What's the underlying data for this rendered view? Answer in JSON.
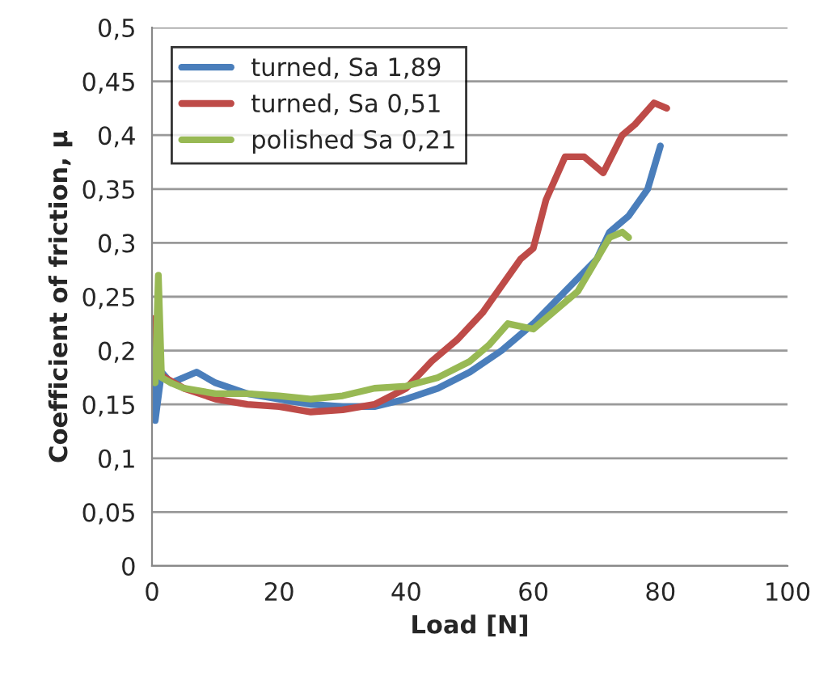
{
  "chart_data": {
    "type": "line",
    "xlabel": "Load [N]",
    "ylabel": "Coefficient of friction, µ",
    "xlim": [
      0,
      100
    ],
    "xticks": [
      0,
      20,
      40,
      60,
      80,
      100
    ],
    "ylim": [
      0,
      0.5
    ],
    "yticks": [
      0,
      {
        "value": 0.05,
        "label": "0,05"
      },
      {
        "value": 0.1,
        "label": "0,1"
      },
      {
        "value": 0.15,
        "label": "0,15"
      },
      {
        "value": 0.2,
        "label": "0,2"
      },
      {
        "value": 0.25,
        "label": "0,25"
      },
      {
        "value": 0.3,
        "label": "0,3"
      },
      {
        "value": 0.35,
        "label": "0,35"
      },
      {
        "value": 0.4,
        "label": "0,4"
      },
      {
        "value": 0.45,
        "label": "0,45"
      },
      {
        "value": 0.5,
        "label": "0,5"
      }
    ],
    "grid": "y",
    "legend": "top left",
    "marker": "none",
    "line_style": "solid",
    "series": [
      {
        "name": "turned, Sa 1,89",
        "color": "#4a7ebb",
        "x": [
          0,
          0.5,
          1.5,
          3,
          7,
          10,
          15,
          20,
          25,
          30,
          35,
          40,
          45,
          50,
          55,
          60,
          65,
          70,
          72,
          75,
          78,
          80
        ],
        "values": [
          0.2,
          0.135,
          0.18,
          0.17,
          0.18,
          0.17,
          0.16,
          0.155,
          0.15,
          0.148,
          0.148,
          0.155,
          0.165,
          0.18,
          0.2,
          0.225,
          0.255,
          0.285,
          0.31,
          0.325,
          0.35,
          0.39
        ]
      },
      {
        "name": "turned, Sa 0,51",
        "color": "#be4b48",
        "x": [
          0,
          1,
          2,
          5,
          10,
          15,
          20,
          25,
          30,
          35,
          40,
          44,
          48,
          52,
          55,
          58,
          60,
          62,
          65,
          68,
          71,
          74,
          76,
          79,
          81
        ],
        "values": [
          0.23,
          0.18,
          0.175,
          0.165,
          0.155,
          0.15,
          0.148,
          0.143,
          0.145,
          0.15,
          0.165,
          0.19,
          0.21,
          0.235,
          0.26,
          0.285,
          0.295,
          0.34,
          0.38,
          0.38,
          0.365,
          0.4,
          0.41,
          0.43,
          0.425
        ]
      },
      {
        "name": "polished Sa 0,21",
        "color": "#98b954",
        "x": [
          0.5,
          1,
          1.5,
          3,
          5,
          10,
          15,
          20,
          25,
          30,
          35,
          40,
          45,
          50,
          53,
          56,
          60,
          63,
          67,
          70,
          72,
          74,
          75
        ],
        "values": [
          0.17,
          0.27,
          0.175,
          0.17,
          0.165,
          0.16,
          0.16,
          0.158,
          0.155,
          0.158,
          0.165,
          0.167,
          0.175,
          0.19,
          0.205,
          0.225,
          0.22,
          0.235,
          0.255,
          0.285,
          0.305,
          0.31,
          0.305
        ]
      }
    ]
  }
}
